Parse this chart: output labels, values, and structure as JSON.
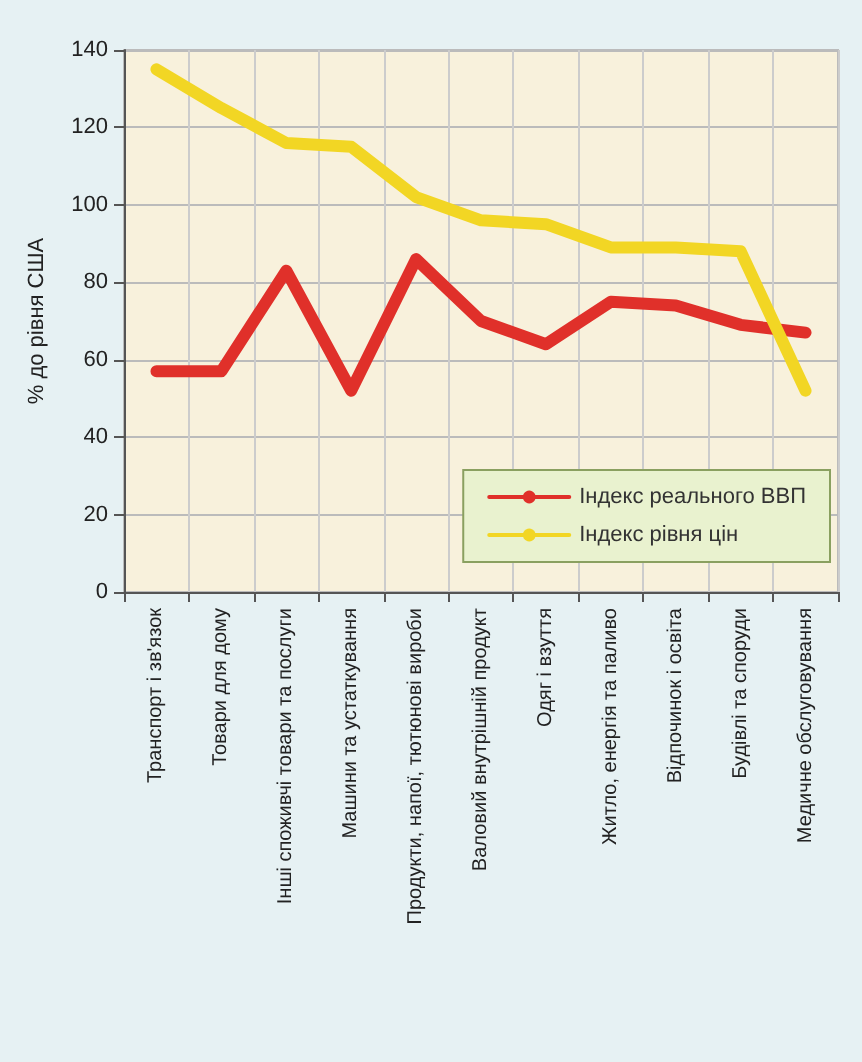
{
  "chart_data": {
    "type": "line",
    "ylabel": "% до рівня США",
    "categories": [
      "Транспорт і зв'язок",
      "Товари для дому",
      "Інші споживчі товари та послуги",
      "Машини та устаткування",
      "Продукти, напої, тютюнові вироби",
      "Валовий внутрішній продукт",
      "Одяг і взуття",
      "Житло, енергія та паливо",
      "Відпочинок і освіта",
      "Будівлі та споруди",
      "Медичне обслуговування"
    ],
    "series": [
      {
        "name": "Індекс реального ВВП",
        "color": "#e0302a",
        "values": [
          57,
          57,
          83,
          52,
          86,
          70,
          64,
          75,
          74,
          69,
          67
        ]
      },
      {
        "name": "Індекс рівня цін",
        "color": "#f2d624",
        "values": [
          135,
          125,
          116,
          115,
          102,
          96,
          95,
          89,
          89,
          88,
          52
        ]
      }
    ],
    "ylim": [
      0,
      140
    ],
    "yticks": [
      0,
      20,
      40,
      60,
      80,
      100,
      120,
      140
    ],
    "grid": true,
    "legend": "bottom right",
    "marker": "none",
    "line_style": "solid"
  }
}
